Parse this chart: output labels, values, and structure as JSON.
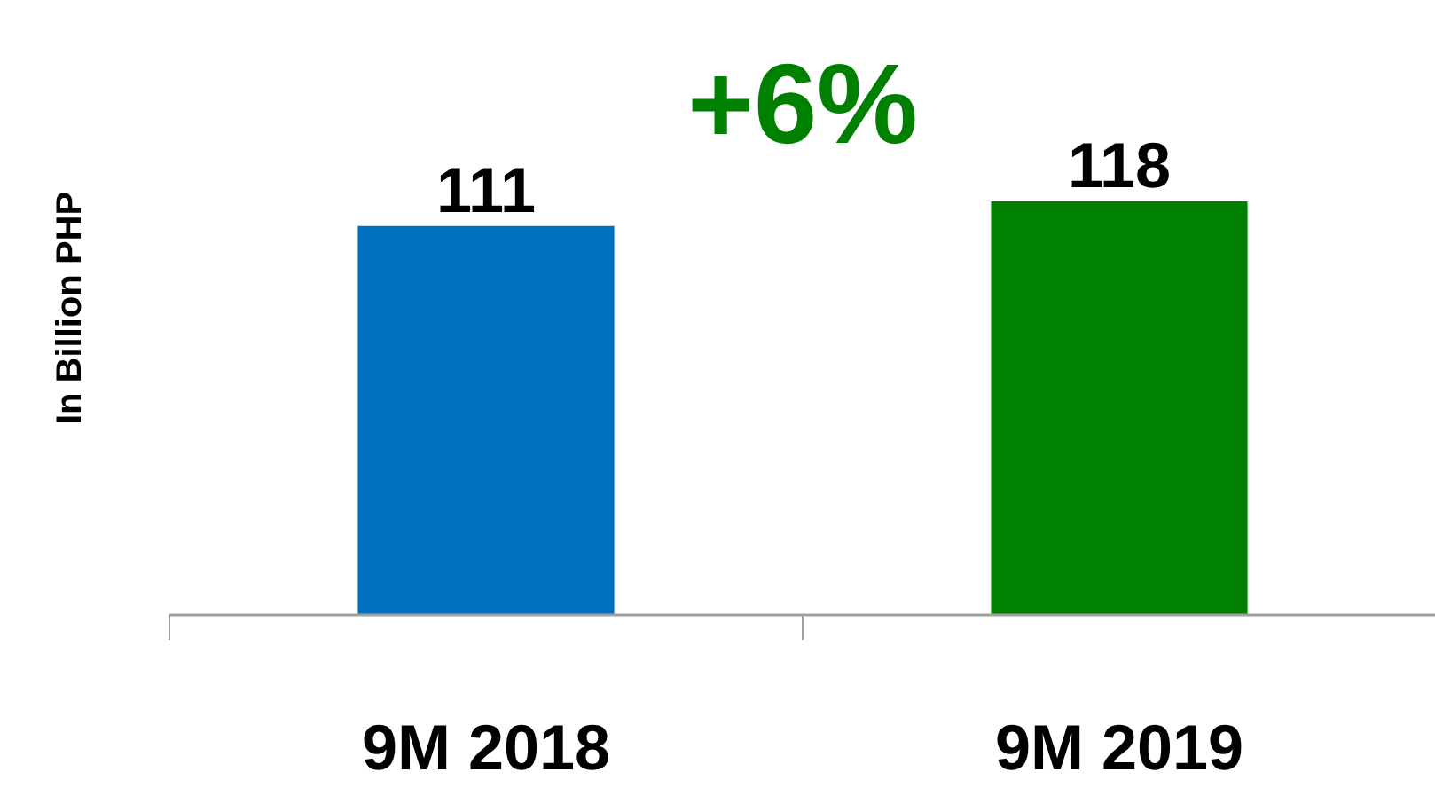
{
  "chart_data": {
    "type": "bar",
    "ylabel": "In Billion PHP",
    "categories": [
      "9M 2018",
      "9M 2019"
    ],
    "values": [
      111,
      118
    ],
    "colors": [
      "#0070c0",
      "#008000"
    ],
    "data_labels": true,
    "grid": false,
    "annotations": [
      "+6%"
    ]
  }
}
